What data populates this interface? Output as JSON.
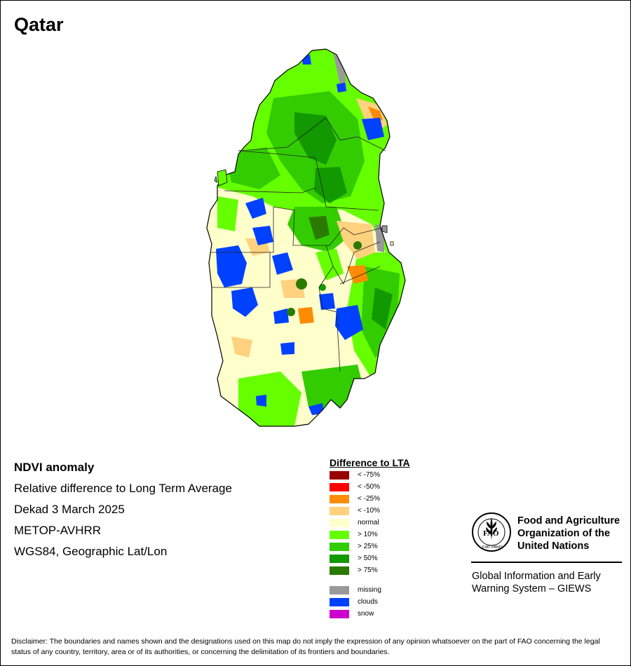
{
  "title": "Qatar",
  "info": {
    "product": "NDVI anomaly",
    "description": "Relative difference to Long Term Average",
    "period": "Dekad 3 March 2025",
    "sensor": "METOP-AVHRR",
    "projection": "WGS84, Geographic Lat/Lon"
  },
  "legend": {
    "title": "Difference to LTA",
    "classes": [
      {
        "label": "< -75%",
        "color": "#990000"
      },
      {
        "label": "< -50%",
        "color": "#ff0000"
      },
      {
        "label": "< -25%",
        "color": "#ff8c00"
      },
      {
        "label": "< -10%",
        "color": "#ffd27f"
      },
      {
        "label": "normal",
        "color": "#ffffcc"
      },
      {
        "label": "> 10%",
        "color": "#66ff00"
      },
      {
        "label": "> 25%",
        "color": "#33cc00"
      },
      {
        "label": "> 50%",
        "color": "#129900"
      },
      {
        "label": "> 75%",
        "color": "#2b7a00"
      }
    ],
    "extra_classes": [
      {
        "label": "missing",
        "color": "#999999"
      },
      {
        "label": "clouds",
        "color": "#0040ff"
      },
      {
        "label": "snow",
        "color": "#cc00cc"
      }
    ]
  },
  "organization": {
    "logo_letters": "FAO",
    "logo_motto": "FIAT PANIS",
    "name_lines": [
      "Food and Agriculture",
      "Organization of the",
      "United Nations"
    ],
    "system_lines": [
      "Global Information and Early",
      "Warning System – GIEWS"
    ]
  },
  "disclaimer": "Disclaimer: The boundaries and names shown and the designations used on this map do not imply the expression of any opinion whatsoever on the part of FAO concerning the legal status of any country, territory, area or of its authorities, or concerning the delimitation of its frontiers and boundaries."
}
